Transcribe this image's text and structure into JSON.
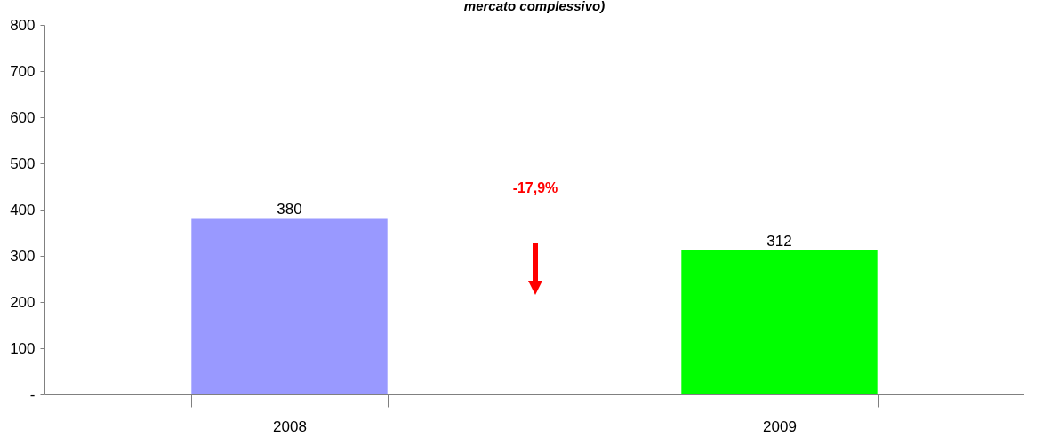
{
  "chart_data": {
    "type": "bar",
    "title": "mercato complessivo)",
    "categories": [
      "2008",
      "2009"
    ],
    "values": [
      380,
      312
    ],
    "colors": [
      "#9999ff",
      "#00ff00"
    ],
    "ylim": [
      0,
      800
    ],
    "yticks": [
      {
        "value": 0,
        "label": "-"
      },
      100,
      200,
      300,
      400,
      500,
      600,
      700,
      800
    ],
    "grid": false,
    "data_labels": true,
    "annotations": [
      "-17,9%"
    ]
  }
}
